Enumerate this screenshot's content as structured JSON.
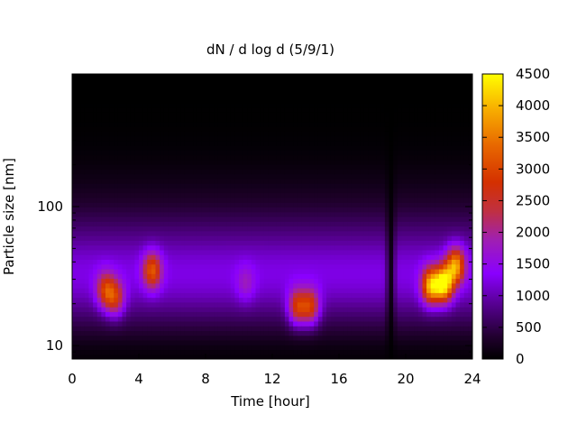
{
  "chart_data": {
    "type": "heatmap",
    "title": "dN / d log d (5/9/1)",
    "xlabel": "Time [hour]",
    "ylabel": "Particle size [nm]",
    "xlim": [
      0,
      24
    ],
    "ylim": [
      8,
      900
    ],
    "y_scale": "log",
    "x_ticks": [
      "0",
      "4",
      "8",
      "12",
      "16",
      "20",
      "24"
    ],
    "x_tick_values": [
      0,
      4,
      8,
      12,
      16,
      20,
      24
    ],
    "y_ticks": [
      "10",
      "100"
    ],
    "y_tick_values": [
      10,
      100
    ],
    "colorbar": {
      "ticks": [
        "0",
        "500",
        "1000",
        "1500",
        "2000",
        "2500",
        "3000",
        "3500",
        "4000",
        "4500"
      ],
      "tick_values": [
        0,
        500,
        1000,
        1500,
        2000,
        2500,
        3000,
        3500,
        4000,
        4500
      ],
      "range": [
        0,
        4500
      ],
      "colormap": "black-purple-red-orange-yellow"
    },
    "grid": false,
    "legend": "colorbar-right",
    "features": [
      {
        "time": 2.0,
        "size_nm": 25,
        "peak": 2700
      },
      {
        "time": 2.6,
        "size_nm": 22,
        "peak": 2600
      },
      {
        "time": 4.8,
        "size_nm": 35,
        "peak": 3000
      },
      {
        "time": 10.4,
        "size_nm": 28,
        "peak": 1600
      },
      {
        "time": 13.5,
        "size_nm": 19,
        "peak": 2900
      },
      {
        "time": 14.3,
        "size_nm": 19,
        "peak": 2900
      },
      {
        "time": 21.5,
        "size_nm": 27,
        "peak": 3800
      },
      {
        "time": 22.3,
        "size_nm": 28,
        "peak": 4300
      },
      {
        "time": 23.0,
        "size_nm": 38,
        "peak": 3600
      }
    ]
  }
}
